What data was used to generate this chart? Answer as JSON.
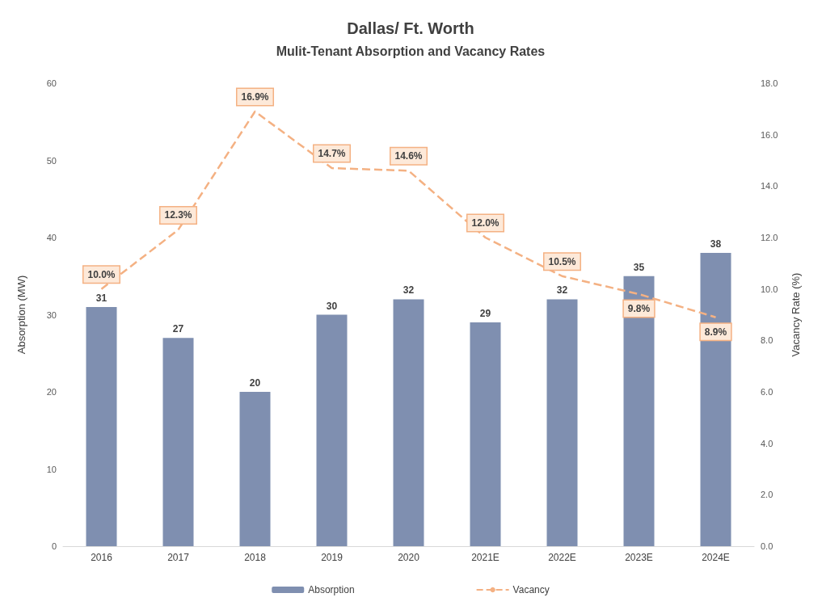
{
  "chart_data": {
    "type": "bar",
    "title": "Dallas/ Ft. Worth",
    "subtitle": "Mulit-Tenant Absorption and Vacancy Rates",
    "ylabel": "Absorption (MW)",
    "y2label": "Vacancy Rate (%)",
    "categories": [
      "2016",
      "2017",
      "2018",
      "2019",
      "2020",
      "2021E",
      "2022E",
      "2023E",
      "2024E"
    ],
    "series": [
      {
        "name": "Absorption",
        "type": "bar",
        "color": "#7f8fb0",
        "values": [
          31,
          27,
          20,
          30,
          32,
          29,
          32,
          35,
          38
        ],
        "data_labels": true
      },
      {
        "name": "Vacancy",
        "type": "line",
        "axis": "y2",
        "color": "#f4b183",
        "line_style": "dashed",
        "marker": "none",
        "values": [
          10.0,
          12.3,
          16.9,
          14.7,
          14.6,
          12.0,
          10.5,
          9.8,
          8.9
        ],
        "value_labels": [
          "10.0%",
          "12.3%",
          "16.9%",
          "14.7%",
          "14.6%",
          "12.0%",
          "10.5%",
          "9.8%",
          "8.9%"
        ]
      }
    ],
    "ylim": [
      0,
      60
    ],
    "yticks": [
      0,
      10,
      20,
      30,
      40,
      50,
      60
    ],
    "y2lim": [
      0,
      18
    ],
    "y2ticks": [
      {
        "value": 0,
        "label": "0.0"
      },
      {
        "value": 2,
        "label": "2.0"
      },
      {
        "value": 4,
        "label": "4.0"
      },
      {
        "value": 6,
        "label": "6.0"
      },
      {
        "value": 8,
        "label": "8.0"
      },
      {
        "value": 10,
        "label": "10.0"
      },
      {
        "value": 12,
        "label": "12.0"
      },
      {
        "value": 14,
        "label": "14.0"
      },
      {
        "value": 16,
        "label": "16.0"
      },
      {
        "value": 18,
        "label": "18.0"
      }
    ],
    "grid": false,
    "legend": "bottom"
  }
}
